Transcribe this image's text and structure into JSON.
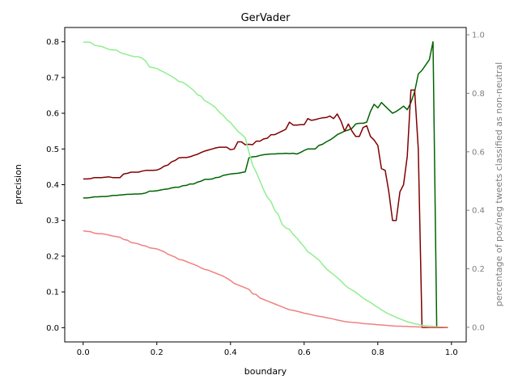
{
  "chart_data": {
    "type": "line",
    "title": "GerVader",
    "xlabel": "boundary",
    "ylabel": "precision",
    "y2label": "percentage of pos/neg tweets classified as non-neutral",
    "xlim": [
      -0.05,
      1.04
    ],
    "ylim": [
      -0.04,
      0.84
    ],
    "y2lim": [
      -0.05,
      1.025
    ],
    "xticks": [
      "0.0",
      "0.2",
      "0.4",
      "0.6",
      "0.8",
      "1.0"
    ],
    "yticks": [
      "0.0",
      "0.1",
      "0.2",
      "0.3",
      "0.4",
      "0.5",
      "0.6",
      "0.7",
      "0.8"
    ],
    "y2ticks": [
      "0.0",
      "0.2",
      "0.4",
      "0.6",
      "0.8",
      "1.0"
    ],
    "x": [
      0.0,
      0.01,
      0.02,
      0.03,
      0.04,
      0.05,
      0.06,
      0.07,
      0.08,
      0.09,
      0.1,
      0.11,
      0.12,
      0.13,
      0.14,
      0.15,
      0.16,
      0.17,
      0.18,
      0.19,
      0.2,
      0.21,
      0.22,
      0.23,
      0.24,
      0.25,
      0.26,
      0.27,
      0.28,
      0.29,
      0.3,
      0.31,
      0.32,
      0.33,
      0.34,
      0.35,
      0.36,
      0.37,
      0.38,
      0.39,
      0.4,
      0.41,
      0.42,
      0.43,
      0.44,
      0.45,
      0.46,
      0.47,
      0.48,
      0.49,
      0.5,
      0.51,
      0.52,
      0.53,
      0.54,
      0.55,
      0.56,
      0.57,
      0.58,
      0.59,
      0.6,
      0.61,
      0.62,
      0.63,
      0.64,
      0.65,
      0.66,
      0.67,
      0.68,
      0.69,
      0.7,
      0.71,
      0.72,
      0.73,
      0.74,
      0.75,
      0.76,
      0.77,
      0.78,
      0.79,
      0.8,
      0.81,
      0.82,
      0.83,
      0.84,
      0.85,
      0.86,
      0.87,
      0.88,
      0.89,
      0.9,
      0.91,
      0.92,
      0.93,
      0.94,
      0.95,
      0.96,
      0.97,
      0.98,
      0.99
    ],
    "series": [
      {
        "axis": "left",
        "color": "#006400",
        "values": [
          0.363,
          0.363,
          0.364,
          0.366,
          0.366,
          0.367,
          0.367,
          0.368,
          0.37,
          0.37,
          0.371,
          0.372,
          0.373,
          0.373,
          0.374,
          0.374,
          0.375,
          0.377,
          0.382,
          0.382,
          0.383,
          0.385,
          0.387,
          0.388,
          0.391,
          0.393,
          0.393,
          0.397,
          0.398,
          0.402,
          0.402,
          0.407,
          0.41,
          0.415,
          0.415,
          0.416,
          0.42,
          0.421,
          0.426,
          0.428,
          0.43,
          0.431,
          0.432,
          0.434,
          0.436,
          0.475,
          0.478,
          0.479,
          0.482,
          0.484,
          0.485,
          0.486,
          0.486,
          0.487,
          0.487,
          0.488,
          0.487,
          0.488,
          0.486,
          0.49,
          0.496,
          0.5,
          0.5,
          0.5,
          0.51,
          0.513,
          0.52,
          0.525,
          0.532,
          0.54,
          0.545,
          0.55,
          0.553,
          0.558,
          0.57,
          0.572,
          0.572,
          0.575,
          0.605,
          0.625,
          0.615,
          0.63,
          0.62,
          0.61,
          0.6,
          0.605,
          0.612,
          0.62,
          0.61,
          0.63,
          0.66,
          0.71,
          0.72,
          0.735,
          0.75,
          0.8,
          0.0,
          0.0,
          0.0,
          0.0
        ]
      },
      {
        "axis": "left",
        "color": "#800000",
        "values": [
          0.416,
          0.416,
          0.417,
          0.42,
          0.42,
          0.42,
          0.421,
          0.422,
          0.42,
          0.42,
          0.42,
          0.43,
          0.432,
          0.435,
          0.435,
          0.435,
          0.438,
          0.44,
          0.44,
          0.44,
          0.441,
          0.445,
          0.452,
          0.455,
          0.464,
          0.468,
          0.475,
          0.476,
          0.476,
          0.478,
          0.482,
          0.485,
          0.49,
          0.494,
          0.497,
          0.5,
          0.503,
          0.505,
          0.505,
          0.505,
          0.498,
          0.5,
          0.52,
          0.52,
          0.512,
          0.513,
          0.512,
          0.522,
          0.522,
          0.528,
          0.53,
          0.54,
          0.54,
          0.545,
          0.55,
          0.555,
          0.575,
          0.567,
          0.567,
          0.568,
          0.568,
          0.585,
          0.58,
          0.582,
          0.585,
          0.587,
          0.588,
          0.592,
          0.585,
          0.598,
          0.578,
          0.55,
          0.57,
          0.55,
          0.535,
          0.535,
          0.56,
          0.565,
          0.535,
          0.525,
          0.51,
          0.445,
          0.44,
          0.38,
          0.3,
          0.3,
          0.38,
          0.4,
          0.48,
          0.665,
          0.665,
          0.5,
          0.0,
          0.0,
          0.0,
          0.0,
          0.0,
          0.0,
          0.0,
          0.0
        ]
      },
      {
        "axis": "right",
        "color": "#90ee90",
        "values": [
          0.975,
          0.975,
          0.974,
          0.965,
          0.962,
          0.96,
          0.955,
          0.95,
          0.948,
          0.948,
          0.94,
          0.935,
          0.932,
          0.928,
          0.925,
          0.925,
          0.92,
          0.91,
          0.89,
          0.888,
          0.885,
          0.878,
          0.872,
          0.865,
          0.858,
          0.85,
          0.84,
          0.838,
          0.83,
          0.82,
          0.81,
          0.795,
          0.79,
          0.775,
          0.768,
          0.76,
          0.75,
          0.735,
          0.725,
          0.71,
          0.7,
          0.685,
          0.67,
          0.66,
          0.648,
          0.6,
          0.555,
          0.53,
          0.5,
          0.47,
          0.445,
          0.43,
          0.4,
          0.385,
          0.352,
          0.34,
          0.335,
          0.318,
          0.305,
          0.29,
          0.275,
          0.258,
          0.25,
          0.24,
          0.23,
          0.215,
          0.2,
          0.19,
          0.18,
          0.17,
          0.158,
          0.145,
          0.135,
          0.128,
          0.12,
          0.11,
          0.1,
          0.092,
          0.085,
          0.076,
          0.068,
          0.06,
          0.052,
          0.045,
          0.04,
          0.034,
          0.029,
          0.024,
          0.019,
          0.016,
          0.012,
          0.01,
          0.007,
          0.005,
          0.004,
          0.003,
          0.002,
          0.001,
          0.0,
          0.0
        ]
      },
      {
        "axis": "right",
        "color": "#f08080",
        "values": [
          0.33,
          0.328,
          0.327,
          0.322,
          0.32,
          0.32,
          0.318,
          0.315,
          0.312,
          0.31,
          0.308,
          0.3,
          0.298,
          0.29,
          0.288,
          0.285,
          0.28,
          0.278,
          0.272,
          0.27,
          0.268,
          0.263,
          0.258,
          0.25,
          0.245,
          0.24,
          0.232,
          0.23,
          0.225,
          0.22,
          0.215,
          0.21,
          0.203,
          0.198,
          0.195,
          0.19,
          0.185,
          0.18,
          0.175,
          0.168,
          0.16,
          0.15,
          0.145,
          0.14,
          0.135,
          0.13,
          0.115,
          0.112,
          0.1,
          0.095,
          0.09,
          0.085,
          0.08,
          0.075,
          0.07,
          0.065,
          0.06,
          0.058,
          0.055,
          0.052,
          0.048,
          0.046,
          0.043,
          0.04,
          0.038,
          0.036,
          0.033,
          0.031,
          0.028,
          0.025,
          0.022,
          0.02,
          0.018,
          0.017,
          0.016,
          0.015,
          0.013,
          0.012,
          0.011,
          0.01,
          0.009,
          0.008,
          0.007,
          0.006,
          0.005,
          0.004,
          0.004,
          0.003,
          0.003,
          0.002,
          0.002,
          0.001,
          0.001,
          0.001,
          0.0,
          0.0,
          0.0,
          0.0,
          0.0,
          0.0
        ]
      }
    ]
  }
}
